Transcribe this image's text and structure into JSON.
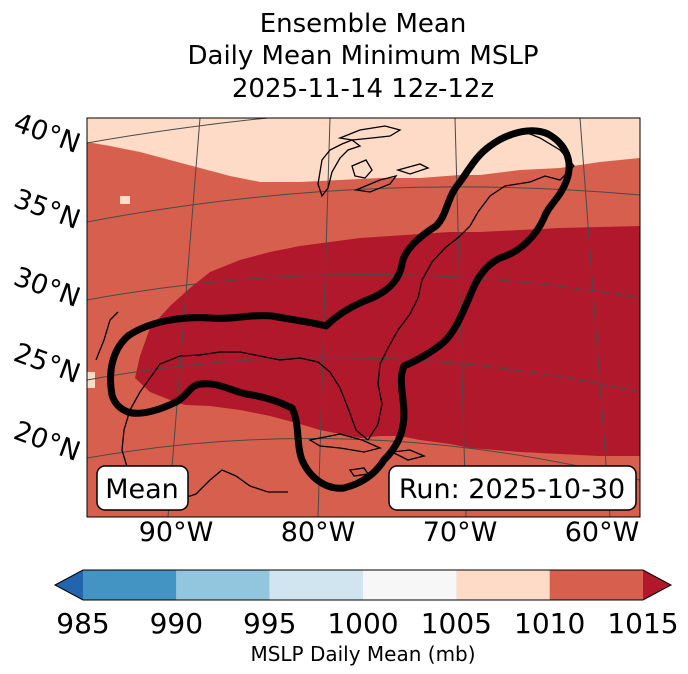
{
  "title": {
    "line1": "Ensemble Mean",
    "line2": "Daily Mean Minimum MSLP",
    "line3": "2025-11-14 12z-12z"
  },
  "map": {
    "lat_labels": [
      "40°N",
      "35°N",
      "30°N",
      "25°N",
      "20°N"
    ],
    "lon_labels": [
      "90°W",
      "80°W",
      "70°W",
      "60°W"
    ],
    "badge_left": "Mean",
    "badge_right": "Run: 2025-10-30",
    "colors": {
      "band_1005_1010": "#fddbc7",
      "band_1010_1015": "#d6604d",
      "band_above_1015": "#b2182b",
      "contour": "#000000",
      "coastline": "#000000",
      "gridline": "#4a4a4a"
    }
  },
  "colorbar": {
    "label": "MSLP Daily Mean (mb)",
    "ticks": [
      "985",
      "990",
      "995",
      "1000",
      "1005",
      "1010",
      "1015"
    ],
    "under_color": "#2166ac",
    "over_color": "#b2182b",
    "bins": [
      {
        "range": "985-990",
        "color": "#4393c3"
      },
      {
        "range": "990-995",
        "color": "#92c5de"
      },
      {
        "range": "995-1000",
        "color": "#d1e5f0"
      },
      {
        "range": "1000-1005",
        "color": "#f7f7f7"
      },
      {
        "range": "1005-1010",
        "color": "#fddbc7"
      },
      {
        "range": "1010-1015",
        "color": "#d6604d"
      }
    ]
  }
}
